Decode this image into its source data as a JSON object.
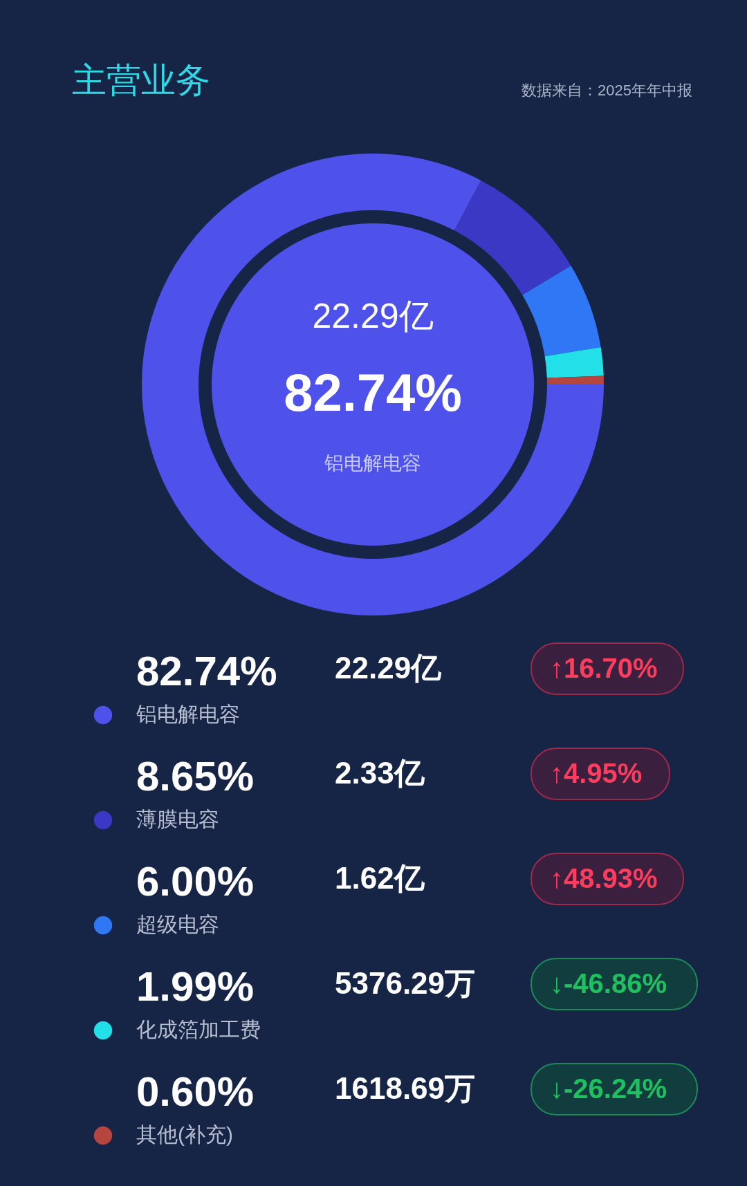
{
  "chart_data": {
    "type": "donut",
    "title": "主营业务",
    "categories": [
      "铝电解电容",
      "薄膜电容",
      "超级电容",
      "化成箔加工费",
      "其他(补充)"
    ],
    "values": [
      82.74,
      8.65,
      6.0,
      1.99,
      0.6
    ],
    "value_labels": [
      "82.74%",
      "8.65%",
      "6.00%",
      "1.99%",
      "0.60%"
    ],
    "colors": [
      "#4f52ea",
      "#3a38c4",
      "#2f77f5",
      "#22dfe8",
      "#b5453e"
    ],
    "legend": "bottom",
    "annotations": [
      "数据来自：2025年年中报",
      "22.29亿",
      "2.33亿",
      "1.62亿",
      "5376.29万",
      "1618.69万",
      "↑16.70%",
      "↑4.95%",
      "↑48.93%",
      "↓-46.86%",
      "↓-26.24%"
    ]
  }
}
